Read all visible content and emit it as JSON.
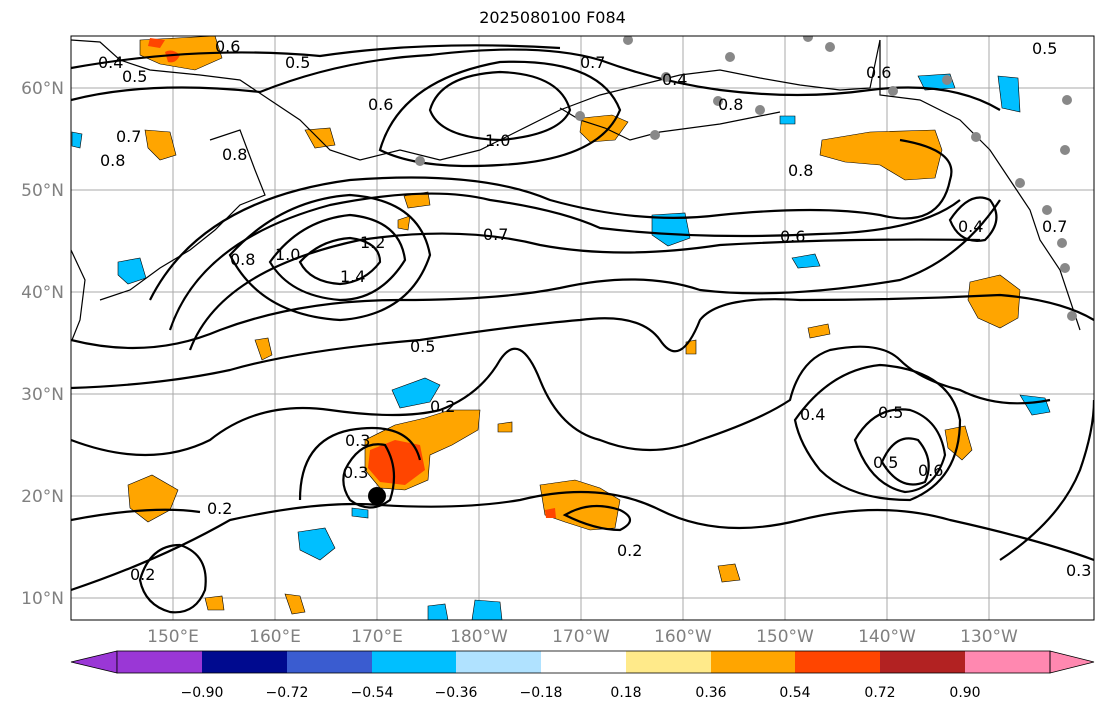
{
  "title": "2025080100 F084",
  "lat_labels": [
    "60°N",
    "50°N",
    "40°N",
    "30°N",
    "20°N",
    "10°N"
  ],
  "lon_labels": [
    "150°E",
    "160°E",
    "170°E",
    "180°W",
    "170°W",
    "160°W",
    "150°W",
    "140°W",
    "130°W"
  ],
  "colorbar": {
    "colors": [
      "#9a37d6",
      "#000a8f",
      "#3a5cd0",
      "#00bfff",
      "#b0e2ff",
      "#ffffff",
      "#ffea8a",
      "#ffa500",
      "#ff4500",
      "#b22222",
      "#ff88b0"
    ],
    "tick_labels": [
      "−0.90",
      "−0.72",
      "−0.54",
      "−0.36",
      "−0.18",
      "0.18",
      "0.36",
      "0.54",
      "0.72",
      "0.90"
    ]
  },
  "contour_labels": [
    "0.4",
    "0.5",
    "0.6",
    "0.5",
    "0.7",
    "0.8",
    "0.6",
    "1.0",
    "0.7",
    "0.4",
    "0.6",
    "0.5",
    "0.8",
    "0.8",
    "0.8",
    "1.0",
    "1.2",
    "1.4",
    "0.8",
    "0.7",
    "0.6",
    "0.4",
    "0.7",
    "0.5",
    "0.2",
    "0.3",
    "0.3",
    "0.4",
    "0.5",
    "0.5",
    "0.6",
    "0.2",
    "0.2",
    "0.2",
    "0.3"
  ],
  "colors": {
    "shade_pos1": "#ffea8a",
    "shade_pos2": "#ffa500",
    "shade_pos3": "#ff4500",
    "shade_neg1": "#00bfff",
    "shade_neg2": "#b0e2ff",
    "grid": "#aaaaaa",
    "station": "#888888"
  }
}
